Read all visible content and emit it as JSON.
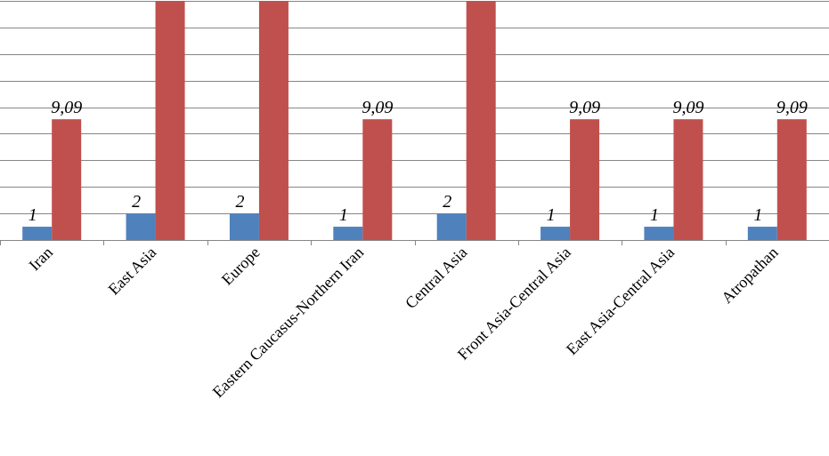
{
  "chart_data": {
    "type": "bar",
    "categories": [
      "Iran",
      "East Asia",
      "Europe",
      "Eastern Caucasus-Northern Iran",
      "Central Asia",
      "Front Asia-Central Asia",
      "East Asia-Central Asia",
      "Atropathan"
    ],
    "series": [
      {
        "values": [
          1,
          2,
          2,
          1,
          2,
          1,
          1,
          1
        ],
        "labels": [
          "1",
          "2",
          "2",
          "1",
          "2",
          "1",
          "1",
          "1"
        ],
        "color": "#4f81bd"
      },
      {
        "values": [
          9.09,
          18.18,
          18.18,
          9.09,
          18.18,
          9.09,
          9.09,
          9.09
        ],
        "labels": [
          "9,09",
          "",
          "",
          "9,09",
          "",
          "9,09",
          "9,09",
          "9,09"
        ],
        "color": "#c0504d"
      }
    ],
    "ylim": [
      0,
      18
    ],
    "ytick_step": 2,
    "grid": true,
    "legend": "none",
    "title": "",
    "xlabel": "",
    "ylabel": ""
  }
}
